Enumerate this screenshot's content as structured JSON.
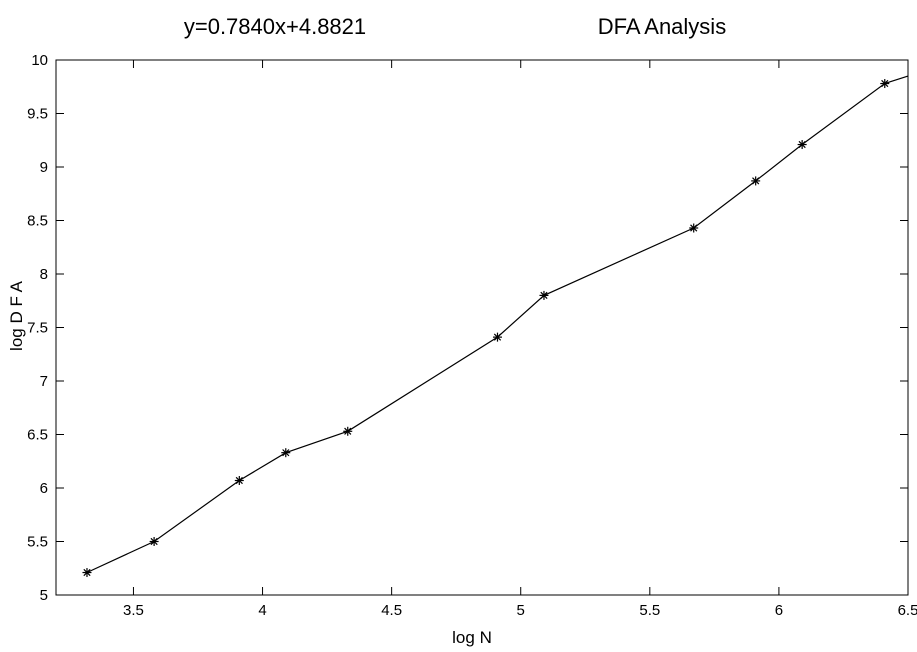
{
  "chart_data": {
    "type": "line",
    "title": "DFA Analysis",
    "equation": "y=0.7840x+4.8821",
    "xlabel": "log N",
    "ylabel": "log  D F A",
    "xlim": [
      3.2,
      6.5
    ],
    "ylim": [
      5,
      10
    ],
    "xticks": [
      "3.5",
      "4",
      "4.5",
      "5",
      "5.5",
      "6",
      "6.5"
    ],
    "yticks": [
      "5",
      "5.5",
      "6",
      "6.5",
      "7",
      "7.5",
      "8",
      "8.5",
      "9",
      "9.5",
      "10"
    ],
    "grid": false,
    "series": [
      {
        "marker": "asterisk",
        "x": [
          3.32,
          3.58,
          3.91,
          4.09,
          4.33,
          4.91,
          5.09,
          5.67,
          5.91,
          6.09,
          6.41,
          6.5
        ],
        "y": [
          5.21,
          5.5,
          6.07,
          6.33,
          6.53,
          7.41,
          7.8,
          8.43,
          8.87,
          9.21,
          9.78,
          9.85
        ],
        "markers_count": 11
      }
    ],
    "colors": {
      "line": "#000000",
      "background": "#ffffff"
    }
  }
}
